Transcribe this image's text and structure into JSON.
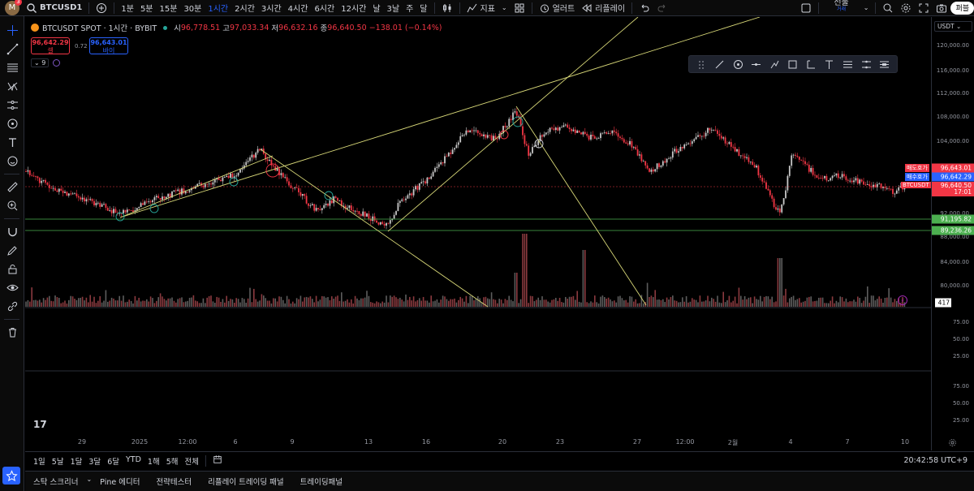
{
  "topbar": {
    "avatar_letter": "M",
    "avatar_badge": "3",
    "symbol": "BTCUSD1",
    "intervals": [
      "1분",
      "5분",
      "15분",
      "30분",
      "1시간",
      "2시간",
      "3시간",
      "4시간",
      "6시간",
      "12시간",
      "날",
      "3날",
      "주",
      "달"
    ],
    "active_interval": "1시간",
    "indicators_label": "지표",
    "alert_label": "얼러트",
    "replay_label": "리플레이",
    "futures_label": "선물",
    "futures_sub": "거래",
    "publish_label": "퍼블"
  },
  "legend": {
    "title": "BTCUSDT SPOT · 1시간 · BYBIT",
    "o_label": "시",
    "o": "96,778.51",
    "h_label": "고",
    "h": "97,033.34",
    "l_label": "저",
    "l": "96,632.16",
    "c_label": "종",
    "c": "96,640.50",
    "change": "−138.01 (−0.14%)",
    "sell_price": "96,642.29",
    "sell_label": "셀",
    "spread": "0.72",
    "buy_price": "96,643.01",
    "buy_label": "바이",
    "indicator_count": "9"
  },
  "price_axis": {
    "currency": "USDT",
    "labels": [
      "120,000.00",
      "116,000.00",
      "112,000.00",
      "108,000.00",
      "104,000.00",
      "92,000.00",
      "88,000.00",
      "84,000.00",
      "80,000.00"
    ],
    "ask_label": "매도호가",
    "ask": "96,643.01",
    "bid_label": "매수호가",
    "bid": "96,642.29",
    "last_label": "BTCUSDT",
    "last": "96,640.50",
    "countdown": "17:01",
    "level1": "91,195.82",
    "level2": "89,236.26",
    "volume": "417",
    "osc_labels_1": [
      "75.00",
      "50.00",
      "25.00"
    ],
    "osc_labels_2": [
      "75.00",
      "50.00",
      "25.00"
    ]
  },
  "time_axis": [
    "29",
    "2025",
    "12:00",
    "6",
    "9",
    "13",
    "16",
    "20",
    "23",
    "27",
    "12:00",
    "2월",
    "4",
    "7",
    "10"
  ],
  "range_buttons": [
    "1일",
    "5날",
    "1달",
    "3달",
    "6달",
    "YTD",
    "1해",
    "5해",
    "전체"
  ],
  "clock": "20:42:58 UTC+9",
  "bottom_tabs": [
    "스탁 스크리너",
    "Pine 에디터",
    "전략테스터",
    "리플레이 트레이딩 패널",
    "트레이딩패널"
  ],
  "colors": {
    "up": "#c8c8c8",
    "down": "#f23645",
    "accent": "#2962ff",
    "trend": "#d8d878",
    "support": "#4caf50"
  }
}
